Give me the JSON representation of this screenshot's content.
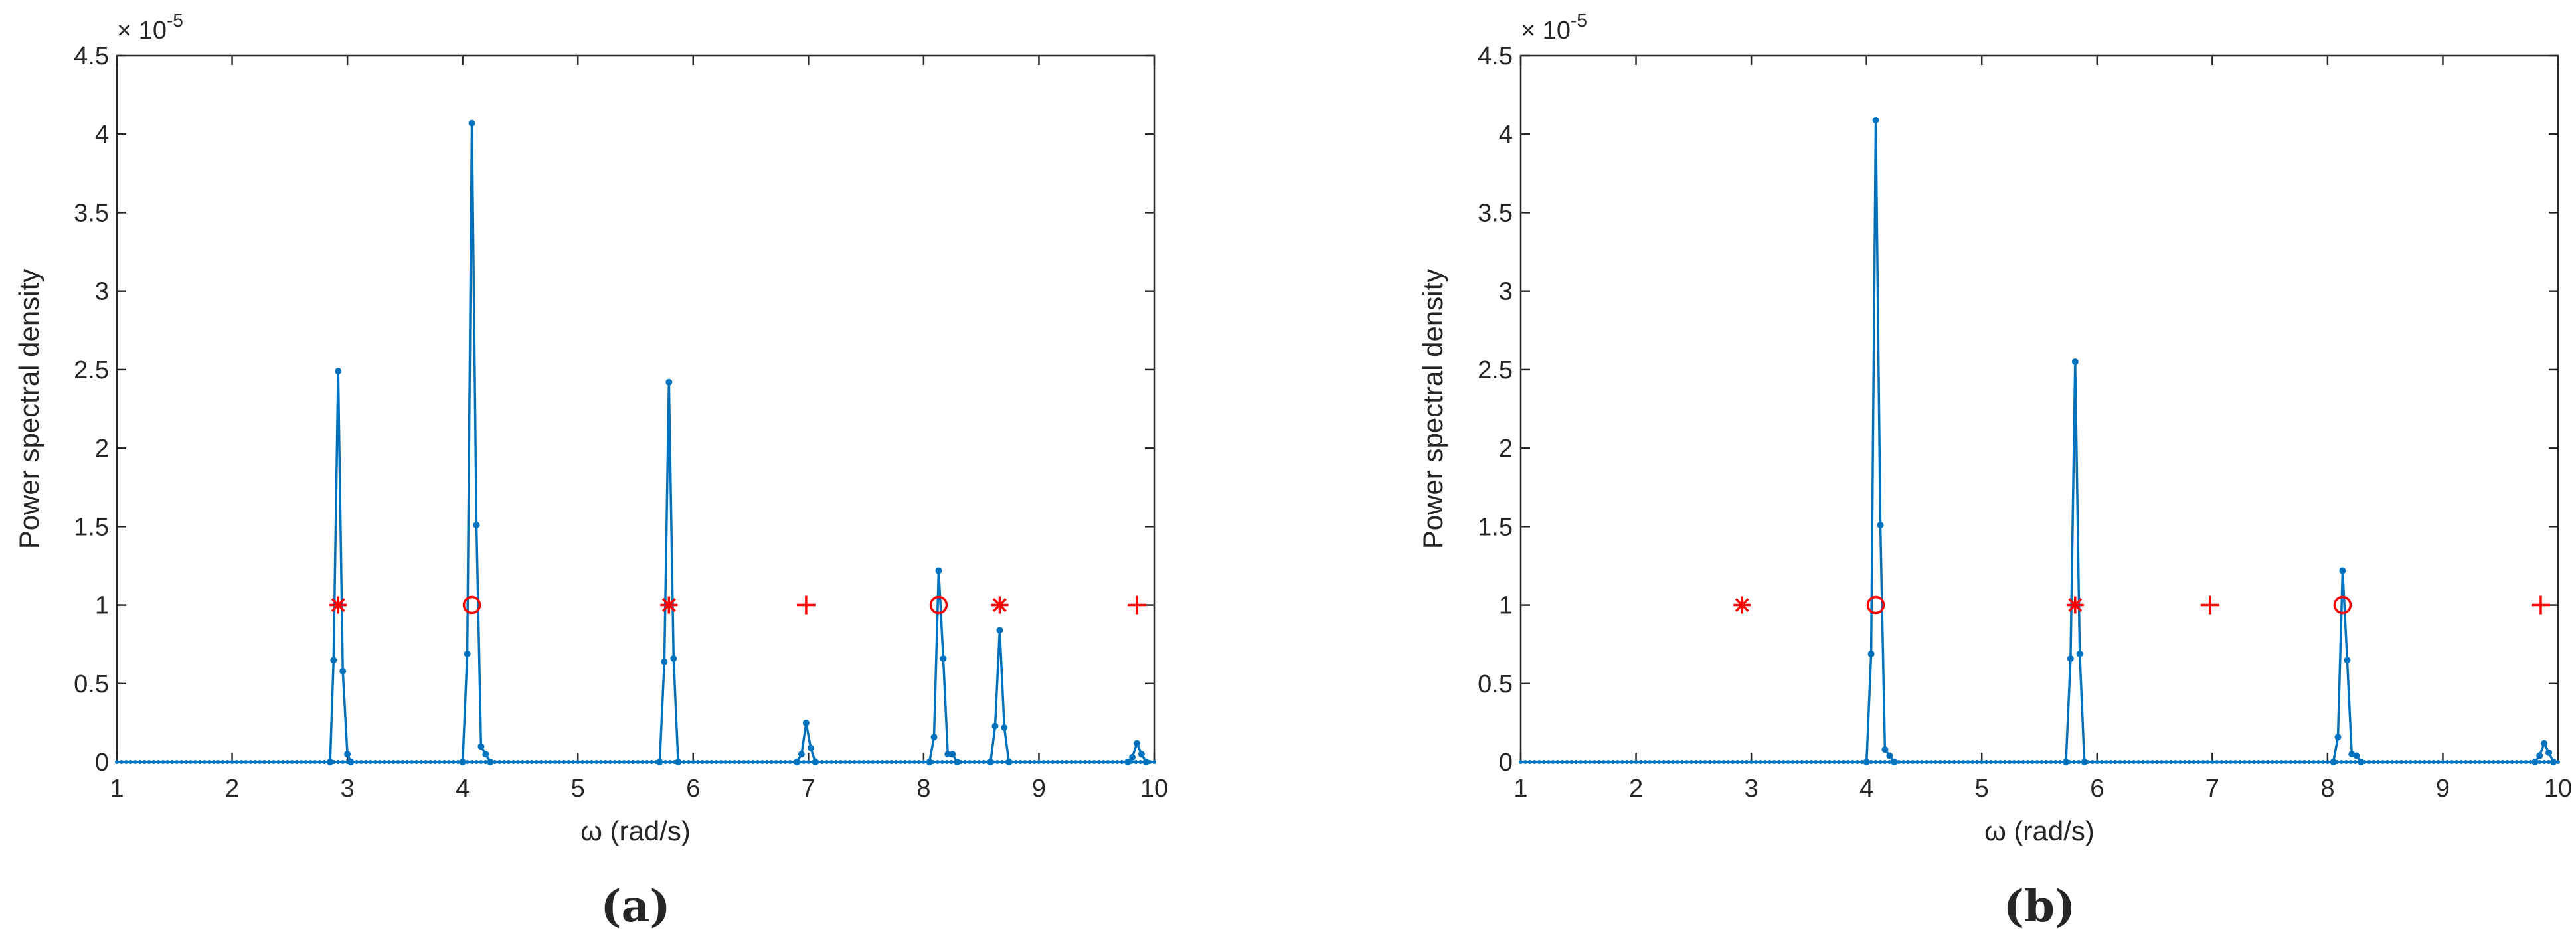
{
  "chart_data": [
    {
      "id": "a",
      "type": "line",
      "panel_label": "(a)",
      "xlabel": "ω (rad/s)",
      "ylabel": "Power spectral density",
      "y_exponent_label": "× 10",
      "y_exponent_power": "-5",
      "xlim": [
        1,
        10
      ],
      "ylim": [
        0,
        4.5
      ],
      "xticks": [
        1,
        2,
        3,
        4,
        5,
        6,
        7,
        8,
        9,
        10
      ],
      "yticks": [
        0,
        0.5,
        1,
        1.5,
        2,
        2.5,
        3,
        3.5,
        4,
        4.5
      ],
      "grid": false,
      "series": [
        {
          "color": "#0072BD",
          "peaks": [
            {
              "points": [
                [
                  2.85,
                  0
                ],
                [
                  2.88,
                  0.65
                ],
                [
                  2.92,
                  2.49
                ],
                [
                  2.96,
                  0.58
                ],
                [
                  3.0,
                  0.05
                ],
                [
                  3.03,
                  0
                ]
              ]
            },
            {
              "points": [
                [
                  4.0,
                  0
                ],
                [
                  4.04,
                  0.69
                ],
                [
                  4.08,
                  4.07
                ],
                [
                  4.12,
                  1.51
                ],
                [
                  4.16,
                  0.1
                ],
                [
                  4.2,
                  0.05
                ],
                [
                  4.24,
                  0
                ]
              ]
            },
            {
              "points": [
                [
                  5.71,
                  0
                ],
                [
                  5.75,
                  0.64
                ],
                [
                  5.79,
                  2.42
                ],
                [
                  5.83,
                  0.66
                ],
                [
                  5.87,
                  0
                ]
              ]
            },
            {
              "points": [
                [
                  6.9,
                  0
                ],
                [
                  6.94,
                  0.05
                ],
                [
                  6.98,
                  0.25
                ],
                [
                  7.02,
                  0.09
                ],
                [
                  7.06,
                  0
                ]
              ]
            },
            {
              "points": [
                [
                  8.05,
                  0
                ],
                [
                  8.09,
                  0.16
                ],
                [
                  8.13,
                  1.22
                ],
                [
                  8.17,
                  0.66
                ],
                [
                  8.21,
                  0.05
                ],
                [
                  8.25,
                  0.05
                ],
                [
                  8.29,
                  0
                ]
              ]
            },
            {
              "points": [
                [
                  8.58,
                  0
                ],
                [
                  8.62,
                  0.23
                ],
                [
                  8.66,
                  0.84
                ],
                [
                  8.7,
                  0.22
                ],
                [
                  8.74,
                  0
                ]
              ]
            },
            {
              "points": [
                [
                  9.77,
                  0
                ],
                [
                  9.81,
                  0.03
                ],
                [
                  9.85,
                  0.12
                ],
                [
                  9.89,
                  0.05
                ],
                [
                  9.93,
                  0
                ]
              ]
            }
          ]
        }
      ],
      "markers": [
        {
          "symbol": "asterisk",
          "x": 2.92,
          "y": 1
        },
        {
          "symbol": "circle",
          "x": 4.08,
          "y": 1
        },
        {
          "symbol": "asterisk",
          "x": 5.79,
          "y": 1
        },
        {
          "symbol": "plus",
          "x": 6.98,
          "y": 1
        },
        {
          "symbol": "circle",
          "x": 8.13,
          "y": 1
        },
        {
          "symbol": "asterisk",
          "x": 8.66,
          "y": 1
        },
        {
          "symbol": "plus",
          "x": 9.85,
          "y": 1
        }
      ],
      "marker_color": "#FF0000"
    },
    {
      "id": "b",
      "type": "line",
      "panel_label": "(b)",
      "xlabel": "ω (rad/s)",
      "ylabel": "Power spectral density",
      "y_exponent_label": "× 10",
      "y_exponent_power": "-5",
      "xlim": [
        1,
        10
      ],
      "ylim": [
        0,
        4.5
      ],
      "xticks": [
        1,
        2,
        3,
        4,
        5,
        6,
        7,
        8,
        9,
        10
      ],
      "yticks": [
        0,
        0.5,
        1,
        1.5,
        2,
        2.5,
        3,
        3.5,
        4,
        4.5
      ],
      "grid": false,
      "series": [
        {
          "color": "#0072BD",
          "peaks": [
            {
              "points": [
                [
                  4.0,
                  0
                ],
                [
                  4.04,
                  0.69
                ],
                [
                  4.08,
                  4.09
                ],
                [
                  4.12,
                  1.51
                ],
                [
                  4.16,
                  0.08
                ],
                [
                  4.2,
                  0.04
                ],
                [
                  4.24,
                  0
                ]
              ]
            },
            {
              "points": [
                [
                  5.73,
                  0
                ],
                [
                  5.77,
                  0.66
                ],
                [
                  5.81,
                  2.55
                ],
                [
                  5.85,
                  0.69
                ],
                [
                  5.89,
                  0
                ]
              ]
            },
            {
              "points": [
                [
                  8.05,
                  0
                ],
                [
                  8.09,
                  0.16
                ],
                [
                  8.13,
                  1.22
                ],
                [
                  8.17,
                  0.65
                ],
                [
                  8.21,
                  0.05
                ],
                [
                  8.25,
                  0.04
                ],
                [
                  8.29,
                  0
                ]
              ]
            },
            {
              "points": [
                [
                  9.8,
                  0
                ],
                [
                  9.84,
                  0.04
                ],
                [
                  9.88,
                  0.12
                ],
                [
                  9.92,
                  0.06
                ],
                [
                  9.96,
                  0
                ]
              ]
            }
          ]
        }
      ],
      "markers": [
        {
          "symbol": "asterisk",
          "x": 2.92,
          "y": 1
        },
        {
          "symbol": "circle",
          "x": 4.08,
          "y": 1
        },
        {
          "symbol": "asterisk",
          "x": 5.81,
          "y": 1
        },
        {
          "symbol": "plus",
          "x": 6.98,
          "y": 1
        },
        {
          "symbol": "circle",
          "x": 8.13,
          "y": 1
        },
        {
          "symbol": "plus",
          "x": 9.85,
          "y": 1
        }
      ],
      "marker_color": "#FF0000"
    }
  ]
}
